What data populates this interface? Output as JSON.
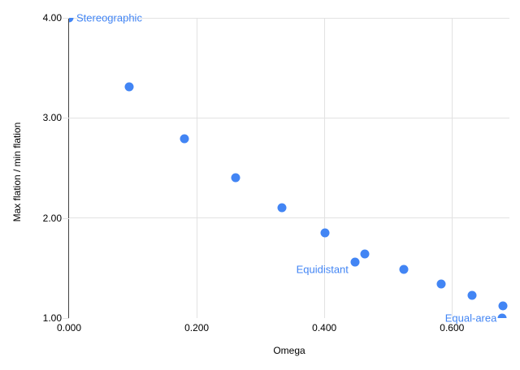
{
  "chart_data": {
    "type": "scatter",
    "xlabel": "Omega",
    "ylabel": "Max flation / min flation",
    "x_range": [
      0,
      0.69
    ],
    "y_range": [
      1.0,
      4.0
    ],
    "grid": true,
    "legend": "none",
    "point_color": "#4285f4",
    "annotation_color": "#4285f4",
    "gridline_color": "#e2e2e2",
    "axis_line_color": "#424242",
    "x_ticks": [
      {
        "value": 0.0,
        "label": "0.000"
      },
      {
        "value": 0.2,
        "label": "0.200"
      },
      {
        "value": 0.4,
        "label": "0.400"
      },
      {
        "value": 0.6,
        "label": "0.600"
      }
    ],
    "y_ticks": [
      {
        "value": 1.0,
        "label": "1.00"
      },
      {
        "value": 2.0,
        "label": "2.00"
      },
      {
        "value": 3.0,
        "label": "3.00"
      },
      {
        "value": 4.0,
        "label": "4.00"
      }
    ],
    "series": [
      {
        "points": [
          {
            "x": 0.0,
            "y": 4.0,
            "label": "Stereographic",
            "label_side": "right",
            "label_dx": 9,
            "label_dy": 0
          },
          {
            "x": 0.094,
            "y": 3.31
          },
          {
            "x": 0.181,
            "y": 2.79
          },
          {
            "x": 0.261,
            "y": 2.4
          },
          {
            "x": 0.334,
            "y": 2.1
          },
          {
            "x": 0.401,
            "y": 1.85
          },
          {
            "x": 0.448,
            "y": 1.56,
            "label": "Equidistant",
            "label_side": "left",
            "label_dx": -8,
            "label_dy": 9
          },
          {
            "x": 0.464,
            "y": 1.64
          },
          {
            "x": 0.525,
            "y": 1.49
          },
          {
            "x": 0.583,
            "y": 1.34
          },
          {
            "x": 0.632,
            "y": 1.23
          },
          {
            "x": 0.68,
            "y": 1.12
          },
          {
            "x": 0.679,
            "y": 1.0,
            "label": "Equal-area",
            "label_side": "left",
            "label_dx": -7,
            "label_dy": 0
          }
        ]
      }
    ]
  }
}
